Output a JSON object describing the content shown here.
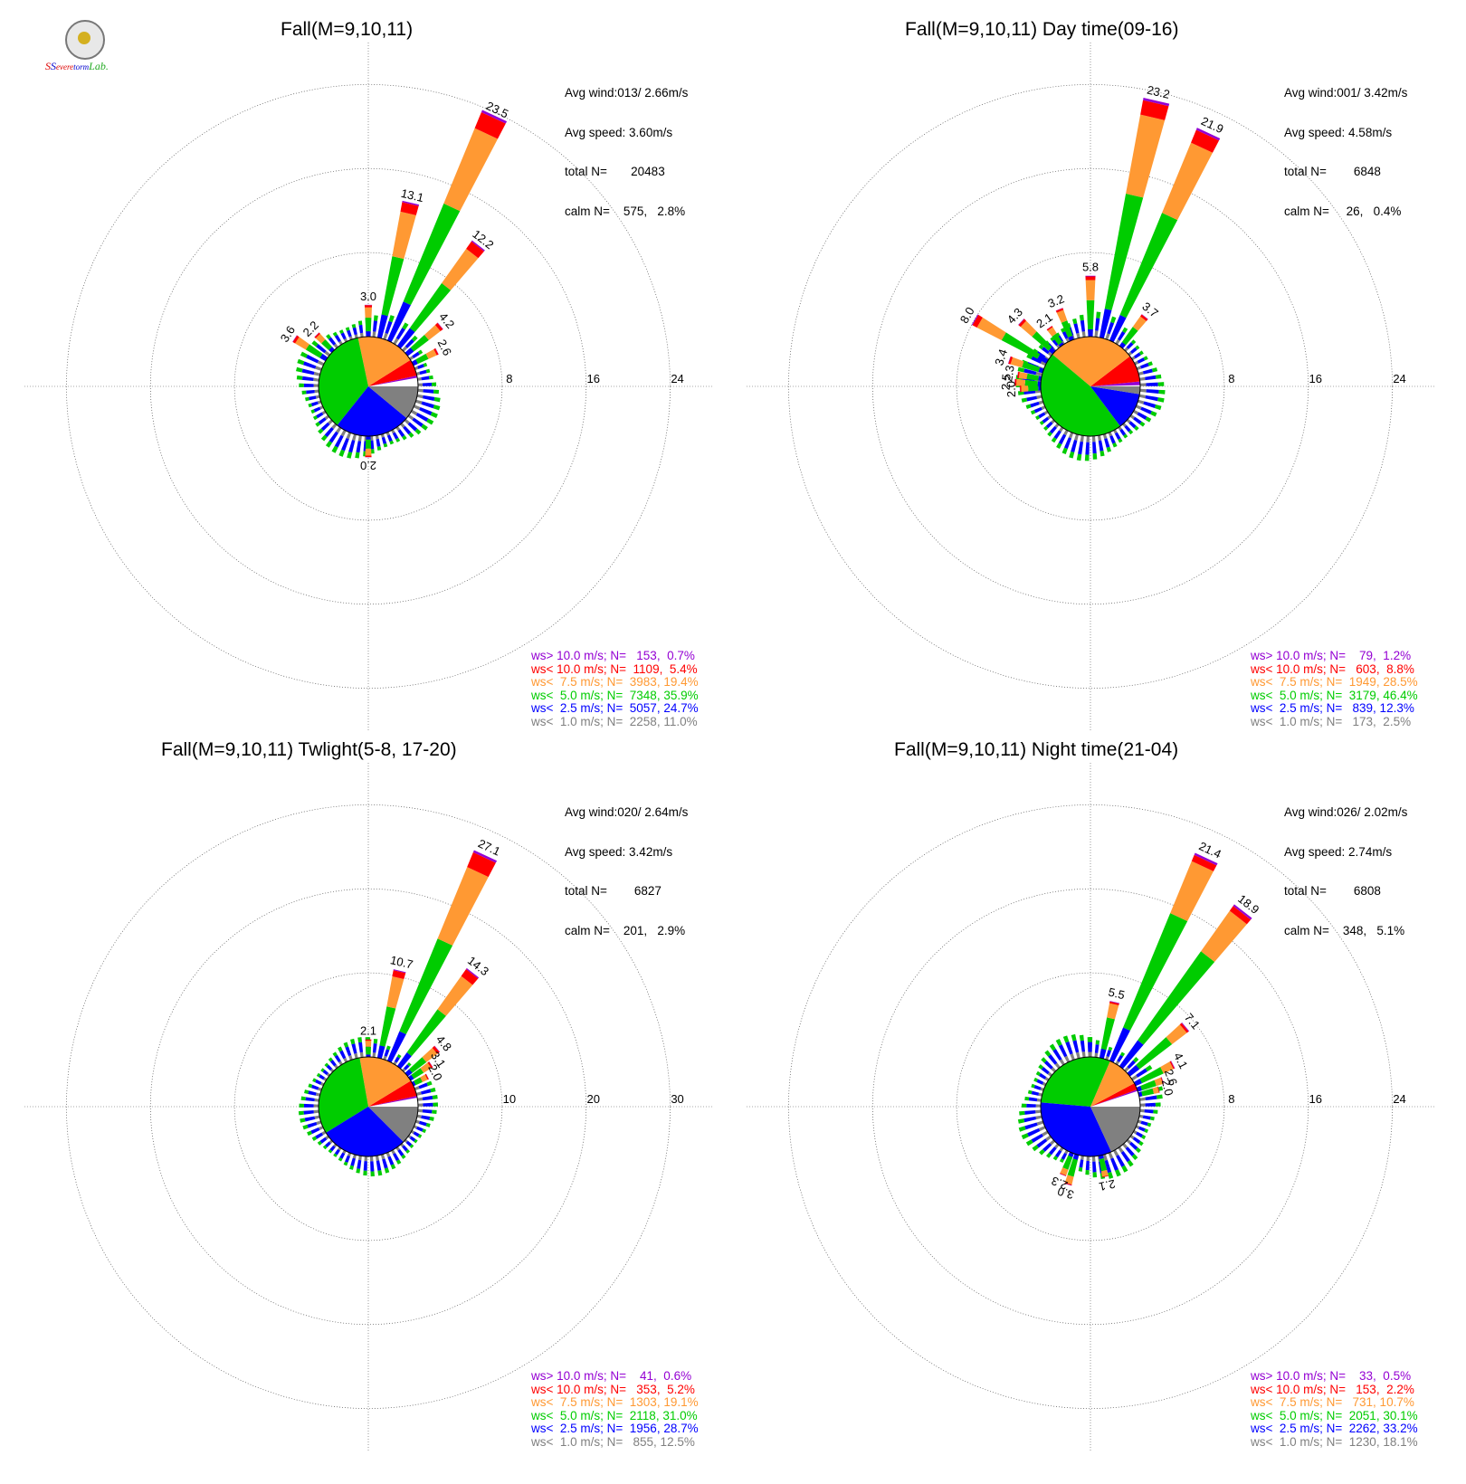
{
  "logo": {
    "text": "SSevereStormLab."
  },
  "colors": {
    "gt10": "#9400D3",
    "lt10": "#FF0000",
    "lt75": "#FF9933",
    "lt5": "#00CC00",
    "lt25": "#0000FF",
    "lt1": "#808080"
  },
  "panels": [
    {
      "title": "Fall(M=9,10,11)",
      "stats": {
        "avg_wind": "Avg wind:013/ 2.66m/s",
        "avg_speed": "Avg speed: 3.60m/s",
        "total": "total N=       20483",
        "calm": "calm N=    575,   2.8%"
      },
      "legend": [
        {
          "label": "ws> 10.0 m/s; N=   153,  0.7%",
          "color": "gt10"
        },
        {
          "label": "ws< 10.0 m/s; N=  1109,  5.4%",
          "color": "lt10"
        },
        {
          "label": "ws<  7.5 m/s; N=  3983, 19.4%",
          "color": "lt75"
        },
        {
          "label": "ws<  5.0 m/s; N=  7348, 35.9%",
          "color": "lt5"
        },
        {
          "label": "ws<  2.5 m/s; N=  5057, 24.7%",
          "color": "lt25"
        },
        {
          "label": "ws<  1.0 m/s; N=  2258, 11.0%",
          "color": "lt1"
        }
      ],
      "axis_ticks": [
        "8",
        "16",
        "24"
      ],
      "rmax": 28
    },
    {
      "title": "Fall(M=9,10,11) Day time(09-16)",
      "stats": {
        "avg_wind": "Avg wind:001/ 3.42m/s",
        "avg_speed": "Avg speed: 4.58m/s",
        "total": "total N=        6848",
        "calm": "calm N=     26,   0.4%"
      },
      "legend": [
        {
          "label": "ws> 10.0 m/s; N=    79,  1.2%",
          "color": "gt10"
        },
        {
          "label": "ws< 10.0 m/s; N=   603,  8.8%",
          "color": "lt10"
        },
        {
          "label": "ws<  7.5 m/s; N=  1949, 28.5%",
          "color": "lt75"
        },
        {
          "label": "ws<  5.0 m/s; N=  3179, 46.4%",
          "color": "lt5"
        },
        {
          "label": "ws<  2.5 m/s; N=   839, 12.3%",
          "color": "lt25"
        },
        {
          "label": "ws<  1.0 m/s; N=   173,  2.5%",
          "color": "lt1"
        }
      ],
      "axis_ticks": [
        "8",
        "16",
        "24"
      ],
      "rmax": 28
    },
    {
      "title": "Fall(M=9,10,11) Twlight(5-8, 17-20)",
      "stats": {
        "avg_wind": "Avg wind:020/ 2.64m/s",
        "avg_speed": "Avg speed: 3.42m/s",
        "total": "total N=        6827",
        "calm": "calm N=    201,   2.9%"
      },
      "legend": [
        {
          "label": "ws> 10.0 m/s; N=    41,  0.6%",
          "color": "gt10"
        },
        {
          "label": "ws< 10.0 m/s; N=   353,  5.2%",
          "color": "lt10"
        },
        {
          "label": "ws<  7.5 m/s; N=  1303, 19.1%",
          "color": "lt75"
        },
        {
          "label": "ws<  5.0 m/s; N=  2118, 31.0%",
          "color": "lt5"
        },
        {
          "label": "ws<  2.5 m/s; N=  1956, 28.7%",
          "color": "lt25"
        },
        {
          "label": "ws<  1.0 m/s; N=   855, 12.5%",
          "color": "lt1"
        }
      ],
      "axis_ticks": [
        "10",
        "20",
        "30"
      ],
      "rmax": 35
    },
    {
      "title": "Fall(M=9,10,11) Night time(21-04)",
      "stats": {
        "avg_wind": "Avg wind:026/ 2.02m/s",
        "avg_speed": "Avg speed: 2.74m/s",
        "total": "total N=        6808",
        "calm": "calm N=    348,   5.1%"
      },
      "legend": [
        {
          "label": "ws> 10.0 m/s; N=    33,  0.5%",
          "color": "gt10"
        },
        {
          "label": "ws< 10.0 m/s; N=   153,  2.2%",
          "color": "lt10"
        },
        {
          "label": "ws<  7.5 m/s; N=   731, 10.7%",
          "color": "lt75"
        },
        {
          "label": "ws<  5.0 m/s; N=  2051, 30.1%",
          "color": "lt5"
        },
        {
          "label": "ws<  2.5 m/s; N=  2262, 33.2%",
          "color": "lt25"
        },
        {
          "label": "ws<  1.0 m/s; N=  1230, 18.1%",
          "color": "lt1"
        }
      ],
      "axis_ticks": [
        "8",
        "16",
        "24"
      ],
      "rmax": 28
    }
  ],
  "chart_data": [
    {
      "type": "wind-rose",
      "title": "Fall(M=9,10,11)",
      "series_order": [
        "lt1",
        "lt25",
        "lt5",
        "lt75",
        "lt10",
        "gt10"
      ],
      "pie": {
        "lt1": 11.0,
        "lt25": 24.7,
        "lt5": 35.9,
        "lt75": 19.4,
        "lt10": 5.4,
        "gt10": 0.7,
        "calm": 2.8
      },
      "petals": [
        {
          "dir": 0,
          "total": 3.0,
          "label": "3.0"
        },
        {
          "dir": 13,
          "total": 13.1,
          "label": "13.1"
        },
        {
          "dir": 25,
          "total": 23.5,
          "label": "23.5"
        },
        {
          "dir": 38,
          "total": 12.2,
          "label": "12.2"
        },
        {
          "dir": 50,
          "total": 4.2,
          "label": "4.2"
        },
        {
          "dir": 63,
          "total": 2.6,
          "label": "2.6"
        },
        {
          "dir": 180,
          "total": 2.0,
          "label": "2.0"
        },
        {
          "dir": 315,
          "total": 2.2,
          "label": "2.2"
        },
        {
          "dir": 303,
          "total": 3.6,
          "label": "3.6"
        }
      ],
      "ticks": [
        8,
        16,
        24
      ],
      "rmax": 28
    },
    {
      "type": "wind-rose",
      "title": "Fall(M=9,10,11) Day time(09-16)",
      "series_order": [
        "lt1",
        "lt25",
        "lt5",
        "lt75",
        "lt10",
        "gt10"
      ],
      "pie": {
        "lt1": 2.5,
        "lt25": 12.3,
        "lt5": 46.4,
        "lt75": 28.5,
        "lt10": 8.8,
        "gt10": 1.2,
        "calm": 0.4
      },
      "petals": [
        {
          "dir": 0,
          "total": 5.8,
          "label": "5.8"
        },
        {
          "dir": 13,
          "total": 23.2,
          "label": "23.2"
        },
        {
          "dir": 25,
          "total": 21.9,
          "label": "21.9"
        },
        {
          "dir": 38,
          "total": 3.7,
          "label": "3.7"
        },
        {
          "dir": 338,
          "total": 3.2,
          "label": "3.2"
        },
        {
          "dir": 325,
          "total": 2.1,
          "label": "2.1"
        },
        {
          "dir": 313,
          "total": 4.3,
          "label": "4.3"
        },
        {
          "dir": 300,
          "total": 8.0,
          "label": "8.0"
        },
        {
          "dir": 288,
          "total": 3.4,
          "label": "3.4"
        },
        {
          "dir": 279,
          "total": 2.3,
          "label": "2.3"
        },
        {
          "dir": 273,
          "total": 2.5,
          "label": "2.5"
        },
        {
          "dir": 268,
          "total": 2.0,
          "label": "2.0"
        }
      ],
      "ticks": [
        8,
        16,
        24
      ],
      "rmax": 28
    },
    {
      "type": "wind-rose",
      "title": "Fall(M=9,10,11) Twlight(5-8, 17-20)",
      "series_order": [
        "lt1",
        "lt25",
        "lt5",
        "lt75",
        "lt10",
        "gt10"
      ],
      "pie": {
        "lt1": 12.5,
        "lt25": 28.7,
        "lt5": 31.0,
        "lt75": 19.1,
        "lt10": 5.2,
        "gt10": 0.6,
        "calm": 2.9
      },
      "petals": [
        {
          "dir": 0,
          "total": 2.1,
          "label": "2.1"
        },
        {
          "dir": 13,
          "total": 10.7,
          "label": "10.7"
        },
        {
          "dir": 25,
          "total": 27.1,
          "label": "27.1"
        },
        {
          "dir": 38,
          "total": 14.3,
          "label": "14.3"
        },
        {
          "dir": 50,
          "total": 4.8,
          "label": "4.8"
        },
        {
          "dir": 56,
          "total": 3.1,
          "label": "3.1"
        },
        {
          "dir": 63,
          "total": 2.0,
          "label": "2.0"
        }
      ],
      "ticks": [
        10,
        20,
        30
      ],
      "rmax": 35
    },
    {
      "type": "wind-rose",
      "title": "Fall(M=9,10,11) Night time(21-04)",
      "series_order": [
        "lt1",
        "lt25",
        "lt5",
        "lt75",
        "lt10",
        "gt10"
      ],
      "pie": {
        "lt1": 18.1,
        "lt25": 33.2,
        "lt5": 30.1,
        "lt75": 10.7,
        "lt10": 2.2,
        "gt10": 0.5,
        "calm": 5.1
      },
      "petals": [
        {
          "dir": 13,
          "total": 5.5,
          "label": "5.5"
        },
        {
          "dir": 25,
          "total": 21.4,
          "label": "21.4"
        },
        {
          "dir": 38,
          "total": 18.9,
          "label": "18.9"
        },
        {
          "dir": 50,
          "total": 7.1,
          "label": "7.1"
        },
        {
          "dir": 63,
          "total": 4.1,
          "label": "4.1"
        },
        {
          "dir": 70,
          "total": 2.6,
          "label": "2.6"
        },
        {
          "dir": 76,
          "total": 2.0,
          "label": "2.0"
        },
        {
          "dir": 168,
          "total": 2.1,
          "label": "2.1"
        },
        {
          "dir": 196,
          "total": 3.0,
          "label": "3.0"
        },
        {
          "dir": 202,
          "total": 2.3,
          "label": "2.3"
        }
      ],
      "ticks": [
        8,
        16,
        24
      ],
      "rmax": 28
    }
  ]
}
